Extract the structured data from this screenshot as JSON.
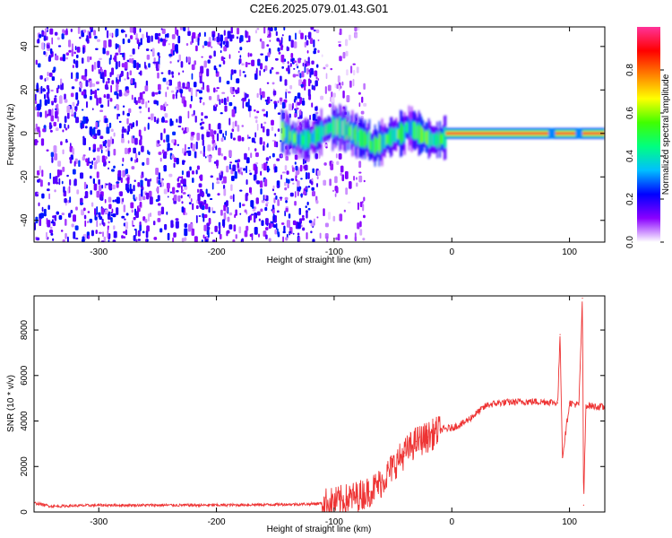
{
  "title": "C2E6.2025.079.01.43.G01",
  "chart_data": [
    {
      "type": "heatmap",
      "xlabel": "Height of straight line (km)",
      "ylabel": "Frequency (Hz)",
      "xlim": [
        -355,
        130
      ],
      "ylim": [
        -50,
        49
      ],
      "x_ticks": [
        -300,
        -200,
        -100,
        0,
        100
      ],
      "y_ticks": [
        -40,
        -20,
        0,
        20,
        40
      ],
      "grid": false,
      "colorbar": {
        "label": "Normalized spectral amplitude",
        "range": [
          0,
          1
        ],
        "ticks": [
          "0.0",
          "0.2",
          "0.4",
          "0.6",
          "0.8"
        ],
        "colormap": [
          "#ffffff",
          "#8a00ff",
          "#0000ff",
          "#00bfff",
          "#00ff80",
          "#40ff00",
          "#ffff00",
          "#ff8000",
          "#ff0000",
          "#ff3399"
        ]
      },
      "regions": [
        {
          "x_range": [
            -355,
            -115
          ],
          "description_values": {
            "freq_range": [
              -50,
              49
            ],
            "amplitude": 0.1
          }
        },
        {
          "x_range": [
            -115,
            -75
          ],
          "description_values": {
            "freq_range": [
              -50,
              49
            ],
            "amplitude": 0.05
          }
        },
        {
          "x_range": [
            -145,
            -5
          ],
          "description_values": {
            "freq_center": 0,
            "amplitude": 0.35
          }
        },
        {
          "x_range": [
            -5,
            130
          ],
          "description_values": {
            "freq_center": 0,
            "amplitude": 0.95
          }
        }
      ]
    },
    {
      "type": "line",
      "xlabel": "Height of straight line (km)",
      "ylabel": "SNR (10 * v/v)",
      "xlim": [
        -355,
        130
      ],
      "ylim": [
        0,
        9500
      ],
      "x_ticks": [
        -300,
        -200,
        -100,
        0,
        100
      ],
      "y_ticks": [
        0,
        2000,
        4000,
        6000,
        8000
      ],
      "grid": false,
      "series": [
        {
          "color": "#ee3333",
          "x": [
            -355,
            -340,
            -300,
            -250,
            -200,
            -150,
            -120,
            -100,
            -90,
            -80,
            -70,
            -60,
            -50,
            -40,
            -30,
            -20,
            -10,
            0,
            10,
            20,
            30,
            40,
            60,
            80,
            90,
            92,
            94,
            100,
            108,
            111,
            112,
            114,
            120,
            130
          ],
          "values": [
            400,
            250,
            300,
            300,
            300,
            330,
            350,
            420,
            550,
            700,
            900,
            1300,
            2000,
            2600,
            3100,
            3300,
            3600,
            3700,
            3900,
            4300,
            4700,
            4800,
            4850,
            4850,
            4800,
            7800,
            2400,
            4800,
            4700,
            9400,
            300,
            4700,
            4650,
            4600
          ]
        }
      ]
    }
  ]
}
